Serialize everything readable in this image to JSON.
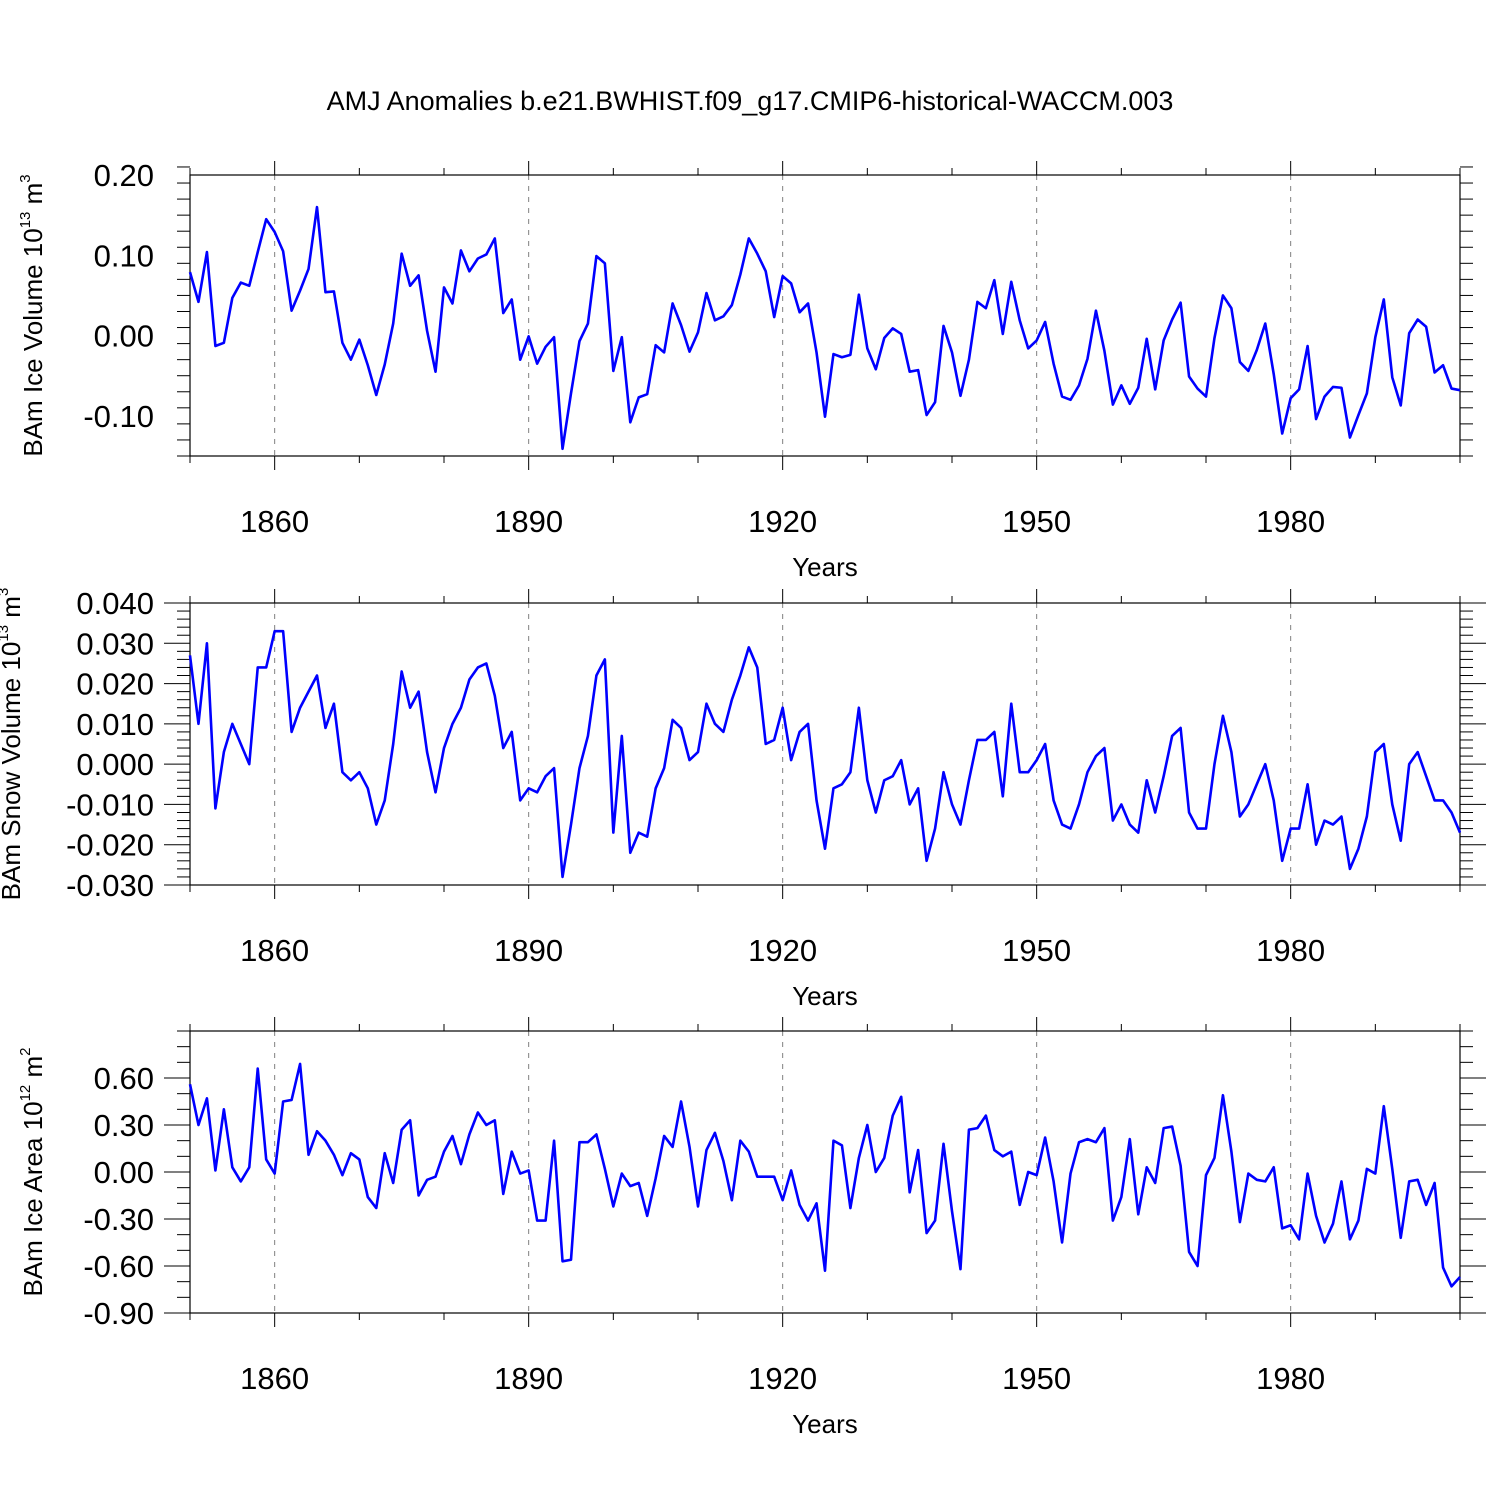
{
  "title": "AMJ Anomalies b.e21.BWHIST.f09_g17.CMIP6-historical-WACCM.003",
  "colors": {
    "line": "#0000ff",
    "axis": "#000000",
    "grid": "#808080"
  },
  "chart_data": [
    {
      "type": "line",
      "xlabel": "Years",
      "ylabel": "BAm Ice Volume 10",
      "ylabel_exp": "13",
      "ylabel_unit": "m",
      "ylabel_unit_exp": "3",
      "xlim": [
        1850,
        2000
      ],
      "ylim": [
        -0.15,
        0.2
      ],
      "x_ticks": [
        1860,
        1890,
        1920,
        1950,
        1980
      ],
      "x_tick_labels": [
        "1860",
        "1890",
        "1920",
        "1950",
        "1980"
      ],
      "y_ticks": [
        -0.1,
        0.0,
        0.1,
        0.2
      ],
      "y_tick_labels": [
        "-0.10",
        "0.00",
        "0.10",
        "0.20"
      ],
      "y_minor_step": 0.02,
      "grid": "vertical dashed at major x ticks",
      "series": [
        {
          "name": "BAm Ice Volume",
          "x_start": 1850,
          "values": [
            0.079,
            0.042,
            0.104,
            -0.013,
            -0.009,
            0.047,
            0.066,
            0.062,
            0.104,
            0.145,
            0.129,
            0.105,
            0.031,
            0.056,
            0.083,
            0.16,
            0.054,
            0.055,
            -0.009,
            -0.03,
            -0.005,
            -0.037,
            -0.074,
            -0.036,
            0.015,
            0.102,
            0.062,
            0.075,
            0.006,
            -0.045,
            0.06,
            0.04,
            0.106,
            0.08,
            0.096,
            0.101,
            0.121,
            0.028,
            0.045,
            -0.03,
            -0.001,
            -0.035,
            -0.014,
            -0.002,
            -0.141,
            -0.072,
            -0.007,
            0.015,
            0.099,
            0.09,
            -0.044,
            -0.002,
            -0.108,
            -0.077,
            -0.073,
            -0.012,
            -0.021,
            0.04,
            0.013,
            -0.02,
            0.004,
            0.053,
            0.019,
            0.024,
            0.038,
            0.076,
            0.121,
            0.102,
            0.08,
            0.023,
            0.074,
            0.065,
            0.029,
            0.04,
            -0.021,
            -0.101,
            -0.023,
            -0.027,
            -0.024,
            0.051,
            -0.016,
            -0.042,
            -0.003,
            0.009,
            0.002,
            -0.045,
            -0.043,
            -0.099,
            -0.083,
            0.012,
            -0.021,
            -0.075,
            -0.03,
            0.042,
            0.034,
            0.069,
            0.002,
            0.067,
            0.019,
            -0.016,
            -0.006,
            0.017,
            -0.035,
            -0.076,
            -0.08,
            -0.062,
            -0.029,
            0.031,
            -0.019,
            -0.086,
            -0.062,
            -0.085,
            -0.065,
            -0.004,
            -0.067,
            -0.006,
            0.02,
            0.041,
            -0.051,
            -0.066,
            -0.076,
            -0.003,
            0.05,
            0.034,
            -0.033,
            -0.044,
            -0.018,
            0.015,
            -0.048,
            -0.122,
            -0.078,
            -0.067,
            -0.013,
            -0.104,
            -0.076,
            -0.064,
            -0.065,
            -0.127,
            -0.099,
            -0.072,
            -0.002,
            0.045,
            -0.052,
            -0.087,
            0.003,
            0.02,
            0.011,
            -0.046,
            -0.037,
            -0.066,
            -0.068
          ]
        }
      ]
    },
    {
      "type": "line",
      "xlabel": "Years",
      "ylabel": "BAm Snow Volume 10",
      "ylabel_exp": "13",
      "ylabel_unit": "m",
      "ylabel_unit_exp": "3",
      "xlim": [
        1850,
        2000
      ],
      "ylim": [
        -0.03,
        0.04
      ],
      "x_ticks": [
        1860,
        1890,
        1920,
        1950,
        1980
      ],
      "x_tick_labels": [
        "1860",
        "1890",
        "1920",
        "1950",
        "1980"
      ],
      "y_ticks": [
        -0.03,
        -0.02,
        -0.01,
        0.0,
        0.01,
        0.02,
        0.03,
        0.04
      ],
      "y_tick_labels": [
        "-0.030",
        "-0.020",
        "-0.010",
        "0.000",
        "0.010",
        "0.020",
        "0.030",
        "0.040"
      ],
      "y_minor_step": 0.002,
      "grid": "vertical dashed at major x ticks",
      "series": [
        {
          "name": "BAm Snow Volume",
          "x_start": 1850,
          "values": [
            0.027,
            0.01,
            0.03,
            -0.011,
            0.003,
            0.01,
            0.005,
            0.0,
            0.024,
            0.024,
            0.033,
            0.033,
            0.008,
            0.014,
            0.018,
            0.022,
            0.009,
            0.015,
            -0.002,
            -0.004,
            -0.002,
            -0.006,
            -0.015,
            -0.009,
            0.005,
            0.023,
            0.014,
            0.018,
            0.003,
            -0.007,
            0.004,
            0.01,
            0.014,
            0.021,
            0.024,
            0.025,
            0.017,
            0.004,
            0.008,
            -0.009,
            -0.006,
            -0.007,
            -0.003,
            -0.001,
            -0.028,
            -0.015,
            -0.001,
            0.007,
            0.022,
            0.026,
            -0.017,
            0.007,
            -0.022,
            -0.017,
            -0.018,
            -0.006,
            -0.001,
            0.011,
            0.009,
            0.001,
            0.003,
            0.015,
            0.01,
            0.008,
            0.016,
            0.022,
            0.029,
            0.024,
            0.005,
            0.006,
            0.014,
            0.001,
            0.008,
            0.01,
            -0.009,
            -0.021,
            -0.006,
            -0.005,
            -0.002,
            0.014,
            -0.004,
            -0.012,
            -0.004,
            -0.003,
            0.001,
            -0.01,
            -0.006,
            -0.024,
            -0.016,
            -0.002,
            -0.01,
            -0.015,
            -0.004,
            0.006,
            0.006,
            0.008,
            -0.008,
            0.015,
            -0.002,
            -0.002,
            0.001,
            0.005,
            -0.009,
            -0.015,
            -0.016,
            -0.01,
            -0.002,
            0.002,
            0.004,
            -0.014,
            -0.01,
            -0.015,
            -0.017,
            -0.004,
            -0.012,
            -0.003,
            0.007,
            0.009,
            -0.012,
            -0.016,
            -0.016,
            -0.0,
            0.012,
            0.003,
            -0.013,
            -0.01,
            -0.005,
            0.0,
            -0.009,
            -0.024,
            -0.016,
            -0.016,
            -0.005,
            -0.02,
            -0.014,
            -0.015,
            -0.013,
            -0.026,
            -0.021,
            -0.013,
            0.003,
            0.005,
            -0.01,
            -0.019,
            0.0,
            0.003,
            -0.003,
            -0.009,
            -0.009,
            -0.012,
            -0.017
          ]
        }
      ]
    },
    {
      "type": "line",
      "xlabel": "Years",
      "ylabel": "BAm Ice Area 10",
      "ylabel_exp": "12",
      "ylabel_unit": "m",
      "ylabel_unit_exp": "2",
      "xlim": [
        1850,
        2000
      ],
      "ylim": [
        -0.9,
        0.9
      ],
      "x_ticks": [
        1860,
        1890,
        1920,
        1950,
        1980
      ],
      "x_tick_labels": [
        "1860",
        "1890",
        "1920",
        "1950",
        "1980"
      ],
      "y_ticks": [
        -0.9,
        -0.6,
        -0.3,
        0.0,
        0.3,
        0.6
      ],
      "y_tick_labels": [
        "-0.90",
        "-0.60",
        "-0.30",
        "0.00",
        "0.30",
        "0.60"
      ],
      "y_minor_step": 0.1,
      "grid": "vertical dashed at major x ticks",
      "series": [
        {
          "name": "BAm Ice Area",
          "x_start": 1850,
          "values": [
            0.56,
            0.3,
            0.47,
            0.01,
            0.4,
            0.03,
            -0.06,
            0.03,
            0.66,
            0.08,
            -0.01,
            0.45,
            0.46,
            0.69,
            0.11,
            0.26,
            0.2,
            0.11,
            -0.02,
            0.12,
            0.08,
            -0.16,
            -0.23,
            0.12,
            -0.07,
            0.27,
            0.33,
            -0.15,
            -0.05,
            -0.03,
            0.13,
            0.23,
            0.05,
            0.24,
            0.38,
            0.3,
            0.33,
            -0.14,
            0.13,
            -0.01,
            0.01,
            -0.31,
            -0.31,
            0.2,
            -0.57,
            -0.56,
            0.19,
            0.19,
            0.24,
            0.02,
            -0.22,
            -0.01,
            -0.09,
            -0.07,
            -0.28,
            -0.04,
            0.23,
            0.16,
            0.45,
            0.16,
            -0.22,
            0.14,
            0.25,
            0.07,
            -0.18,
            0.2,
            0.13,
            -0.03,
            -0.03,
            -0.03,
            -0.18,
            0.01,
            -0.21,
            -0.31,
            -0.2,
            -0.63,
            0.2,
            0.17,
            -0.23,
            0.09,
            0.3,
            -0.0,
            0.09,
            0.36,
            0.48,
            -0.13,
            0.14,
            -0.39,
            -0.31,
            0.18,
            -0.25,
            -0.62,
            0.27,
            0.28,
            0.36,
            0.14,
            0.1,
            0.13,
            -0.21,
            0.0,
            -0.02,
            0.22,
            -0.06,
            -0.45,
            -0.01,
            0.19,
            0.21,
            0.19,
            0.28,
            -0.31,
            -0.16,
            0.21,
            -0.27,
            0.03,
            -0.07,
            0.28,
            0.29,
            0.04,
            -0.51,
            -0.6,
            -0.02,
            0.09,
            0.49,
            0.13,
            -0.32,
            -0.01,
            -0.05,
            -0.06,
            0.03,
            -0.36,
            -0.34,
            -0.43,
            -0.01,
            -0.28,
            -0.45,
            -0.33,
            -0.06,
            -0.43,
            -0.31,
            0.02,
            -0.01,
            0.42,
            0.02,
            -0.42,
            -0.06,
            -0.05,
            -0.21,
            -0.07,
            -0.61,
            -0.73,
            -0.67
          ]
        }
      ]
    }
  ]
}
